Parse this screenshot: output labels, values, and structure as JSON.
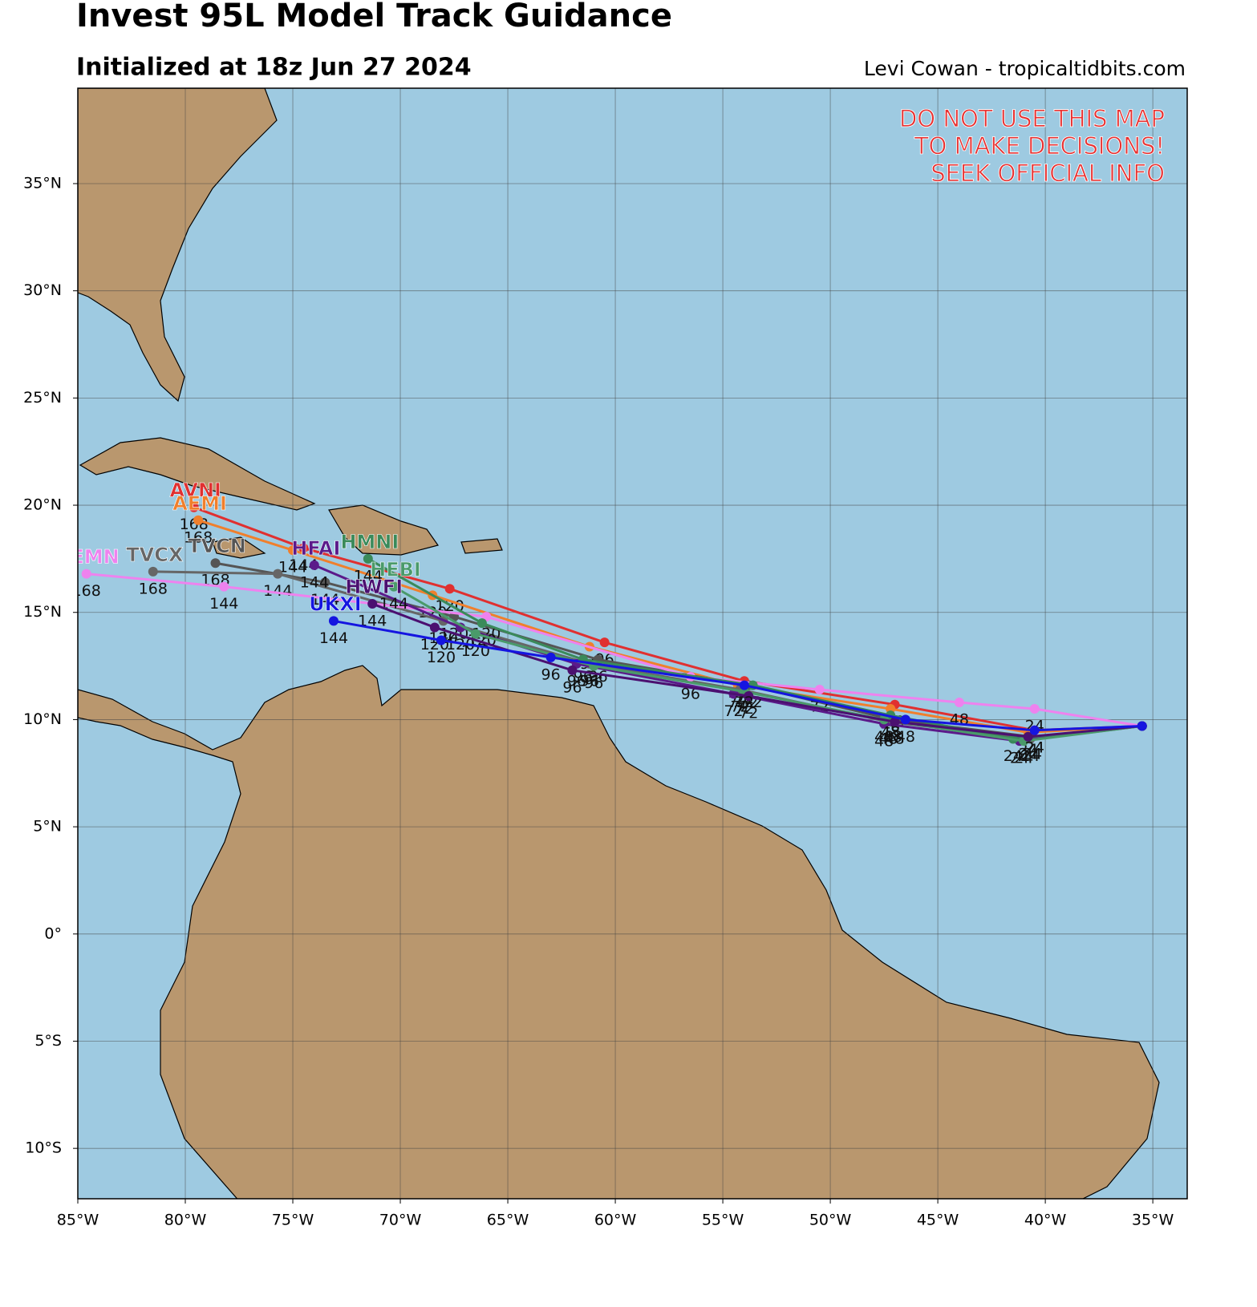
{
  "chart_data": {
    "type": "line",
    "title": "Invest 95L Model Track Guidance",
    "subtitle": "Initialized at 18z Jun 27 2024",
    "credit": "Levi Cowan - tropicaltidbits.com",
    "annotations": [
      "DO NOT USE THIS MAP",
      "TO MAKE DECISIONS!",
      "SEEK OFFICIAL INFO"
    ],
    "grid": true,
    "xlim": [
      -85,
      -33.4
    ],
    "ylim": [
      -12.35,
      39.45
    ],
    "xticks": [
      {
        "value": -85,
        "label": "85°W"
      },
      {
        "value": -80,
        "label": "80°W"
      },
      {
        "value": -75,
        "label": "75°W"
      },
      {
        "value": -70,
        "label": "70°W"
      },
      {
        "value": -65,
        "label": "65°W"
      },
      {
        "value": -60,
        "label": "60°W"
      },
      {
        "value": -55,
        "label": "55°W"
      },
      {
        "value": -50,
        "label": "50°W"
      },
      {
        "value": -45,
        "label": "45°W"
      },
      {
        "value": -40,
        "label": "40°W"
      },
      {
        "value": -35,
        "label": "35°W"
      }
    ],
    "yticks": [
      {
        "value": -10,
        "label": "10°S"
      },
      {
        "value": -5,
        "label": "5°S"
      },
      {
        "value": 0,
        "label": "0°"
      },
      {
        "value": 5,
        "label": "5°N"
      },
      {
        "value": 10,
        "label": "10°N"
      },
      {
        "value": 15,
        "label": "15°N"
      },
      {
        "value": 20,
        "label": "20°N"
      },
      {
        "value": 25,
        "label": "25°N"
      },
      {
        "value": 30,
        "label": "30°N"
      },
      {
        "value": 35,
        "label": "35°N"
      }
    ],
    "series": [
      {
        "name": "AVNI",
        "color": "#e03030",
        "x": [
          -35.5,
          -40.5,
          -47,
          -54,
          -60.5,
          -67.7,
          -74.5,
          -79.6
        ],
        "y": [
          9.7,
          9.5,
          10.7,
          11.8,
          13.6,
          16.1,
          18.0,
          19.9
        ],
        "hours": [
          null,
          24,
          48,
          72,
          96,
          120,
          144,
          168
        ]
      },
      {
        "name": "AEMI",
        "color": "#f07f2c",
        "x": [
          -35.5,
          -40.8,
          -47.2,
          -54.3,
          -61.2,
          -68.5,
          -75,
          -79.4
        ],
        "y": [
          9.7,
          9.4,
          10.5,
          11.6,
          13.4,
          15.8,
          17.9,
          19.3
        ],
        "hours": [
          null,
          24,
          48,
          72,
          96,
          120,
          144,
          168
        ]
      },
      {
        "name": "TVCN",
        "color": "#555555",
        "x": [
          -35.5,
          -40.6,
          -47.1,
          -53.8,
          -60.8,
          -67.5,
          -73.5,
          -78.6
        ],
        "y": [
          9.7,
          9.2,
          10.0,
          11.6,
          12.8,
          14.8,
          16.4,
          17.3
        ],
        "hours": [
          null,
          24,
          48,
          72,
          96,
          120,
          144,
          168
        ]
      },
      {
        "name": "TVCX",
        "color": "#666666",
        "x": [
          -35.5,
          -40.7,
          -47.3,
          -54.2,
          -61.2,
          -68,
          -75.7,
          -81.5
        ],
        "y": [
          9.7,
          9.1,
          9.9,
          11.4,
          12.6,
          14.6,
          16.8,
          16.9
        ],
        "hours": [
          null,
          24,
          48,
          72,
          96,
          120,
          144,
          168
        ]
      },
      {
        "name": "CEMN",
        "color": "#ee82ee",
        "x": [
          -35.5,
          -40.5,
          -44,
          -50.5,
          -56.5,
          -66,
          -78.2,
          -84.6
        ],
        "y": [
          9.7,
          10.5,
          10.8,
          11.4,
          12.0,
          14.8,
          16.2,
          16.8
        ],
        "hours": [
          null,
          24,
          48,
          72,
          96,
          120,
          144,
          168
        ]
      },
      {
        "name": "HFAI",
        "color": "#5b1a8a",
        "x": [
          -35.5,
          -41.2,
          -47.5,
          -54.5,
          -61.8,
          -67.2,
          -74
        ],
        "y": [
          9.7,
          9.0,
          9.8,
          11.2,
          12.6,
          14.3,
          17.2
        ],
        "hours": [
          null,
          24,
          48,
          72,
          96,
          120,
          144
        ]
      },
      {
        "name": "HMNI",
        "color": "#3a8a5a",
        "x": [
          -35.5,
          -41.5,
          -47.2,
          -53.6,
          -61.5,
          -66.2,
          -71.5
        ],
        "y": [
          9.7,
          9.1,
          10.2,
          11.6,
          12.8,
          14.5,
          17.5
        ],
        "hours": [
          null,
          24,
          48,
          72,
          96,
          120,
          144
        ]
      },
      {
        "name": "HEBI",
        "color": "#4a9a6a",
        "x": [
          -35.5,
          -41,
          -47.5,
          -54,
          -61,
          -66.5,
          -70.3
        ],
        "y": [
          9.7,
          9.0,
          10.0,
          11.3,
          12.5,
          14.0,
          16.2
        ],
        "hours": [
          null,
          24,
          48,
          72,
          96,
          120,
          144
        ]
      },
      {
        "name": "HWFI",
        "color": "#4b1070",
        "x": [
          -35.5,
          -40.8,
          -47,
          -53.8,
          -62,
          -68.4,
          -71.3
        ],
        "y": [
          9.7,
          9.2,
          9.9,
          11.1,
          12.3,
          14.3,
          15.4
        ],
        "hours": [
          null,
          24,
          48,
          72,
          96,
          120,
          144
        ]
      },
      {
        "name": "UKXI",
        "color": "#1515e0",
        "x": [
          -35.5,
          -40.5,
          -46.5,
          -54,
          -63,
          -68.1,
          -73.1
        ],
        "y": [
          9.7,
          9.5,
          10.0,
          11.6,
          12.9,
          13.7,
          14.6
        ],
        "hours": [
          null,
          24,
          48,
          72,
          96,
          120,
          144
        ]
      }
    ]
  }
}
